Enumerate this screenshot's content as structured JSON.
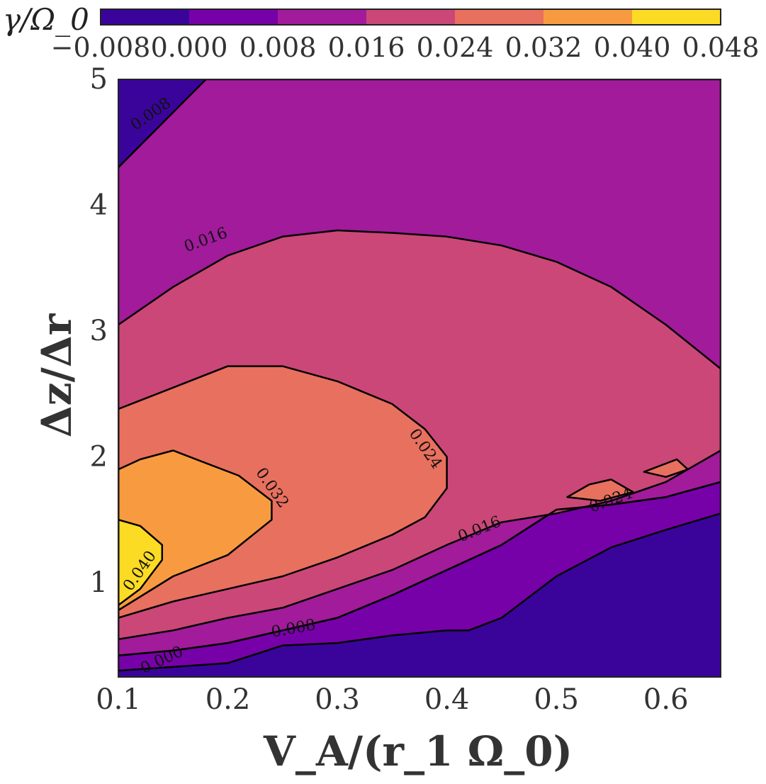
{
  "chart_data": {
    "type": "contourf",
    "title": "",
    "xlabel": "V_A/(r_1 Ω_0)",
    "ylabel": "Δz/Δr",
    "xlim": [
      0.1,
      0.65
    ],
    "ylim": [
      0.25,
      5.0
    ],
    "x_ticks": [
      0.1,
      0.2,
      0.3,
      0.4,
      0.5,
      0.6
    ],
    "x_tick_labels": [
      "0.1",
      "0.2",
      "0.3",
      "0.4",
      "0.5",
      "0.6"
    ],
    "y_ticks": [
      1,
      2,
      3,
      4,
      5
    ],
    "y_tick_labels": [
      "1",
      "2",
      "3",
      "4",
      "5"
    ],
    "colorbar": {
      "label": "γ/Ω_0",
      "levels": [
        -0.008,
        0.0,
        0.008,
        0.016,
        0.024,
        0.032,
        0.04,
        0.048
      ],
      "tick_labels": [
        "−0.008",
        "0.000",
        "0.008",
        "0.016",
        "0.024",
        "0.032",
        "0.040",
        "0.048"
      ],
      "colors": [
        "#3a049a",
        "#7701a8",
        "#a11b9b",
        "#cb4778",
        "#e8705e",
        "#f89b40",
        "#fcdb24"
      ],
      "position": "top"
    },
    "contours": [
      {
        "level": "0.000",
        "label": "0.000",
        "color": "#7701a8",
        "polygon": [
          [
            0.1,
            0.3
          ],
          [
            0.2,
            0.36
          ],
          [
            0.25,
            0.5
          ],
          [
            0.3,
            0.52
          ],
          [
            0.35,
            0.58
          ],
          [
            0.4,
            0.62
          ],
          [
            0.42,
            0.62
          ],
          [
            0.45,
            0.72
          ],
          [
            0.5,
            1.05
          ],
          [
            0.55,
            1.28
          ],
          [
            0.6,
            1.42
          ],
          [
            0.65,
            1.55
          ],
          [
            0.65,
            1.8
          ],
          [
            0.6,
            1.68
          ],
          [
            0.55,
            1.62
          ],
          [
            0.5,
            1.58
          ],
          [
            0.45,
            1.3
          ],
          [
            0.4,
            1.1
          ],
          [
            0.35,
            0.9
          ],
          [
            0.3,
            0.72
          ],
          [
            0.25,
            0.62
          ],
          [
            0.2,
            0.52
          ],
          [
            0.15,
            0.46
          ],
          [
            0.1,
            0.42
          ]
        ]
      },
      {
        "level": "0.008",
        "label": "0.008",
        "color": "#a11b9b",
        "polygon": [
          [
            0.1,
            0.42
          ],
          [
            0.15,
            0.46
          ],
          [
            0.2,
            0.52
          ],
          [
            0.25,
            0.62
          ],
          [
            0.3,
            0.72
          ],
          [
            0.35,
            0.9
          ],
          [
            0.4,
            1.1
          ],
          [
            0.45,
            1.3
          ],
          [
            0.5,
            1.58
          ],
          [
            0.55,
            1.62
          ],
          [
            0.6,
            1.68
          ],
          [
            0.65,
            1.8
          ],
          [
            0.65,
            5.0
          ],
          [
            0.18,
            5.0
          ],
          [
            0.1,
            4.3
          ]
        ]
      },
      {
        "level": "0.016",
        "label": "0.016",
        "color": "#cb4778",
        "polygon": [
          [
            0.1,
            0.55
          ],
          [
            0.15,
            0.62
          ],
          [
            0.2,
            0.72
          ],
          [
            0.25,
            0.8
          ],
          [
            0.3,
            0.95
          ],
          [
            0.35,
            1.1
          ],
          [
            0.4,
            1.3
          ],
          [
            0.45,
            1.48
          ],
          [
            0.5,
            1.55
          ],
          [
            0.55,
            1.65
          ],
          [
            0.6,
            1.8
          ],
          [
            0.65,
            2.05
          ],
          [
            0.65,
            2.7
          ],
          [
            0.6,
            3.05
          ],
          [
            0.55,
            3.35
          ],
          [
            0.5,
            3.55
          ],
          [
            0.45,
            3.68
          ],
          [
            0.4,
            3.75
          ],
          [
            0.35,
            3.78
          ],
          [
            0.3,
            3.8
          ],
          [
            0.25,
            3.75
          ],
          [
            0.2,
            3.6
          ],
          [
            0.15,
            3.35
          ],
          [
            0.1,
            3.05
          ]
        ]
      },
      {
        "level": "0.024",
        "label": "0.024",
        "color": "#e8705e",
        "polygon": [
          [
            0.1,
            0.72
          ],
          [
            0.15,
            0.85
          ],
          [
            0.2,
            0.95
          ],
          [
            0.25,
            1.05
          ],
          [
            0.3,
            1.2
          ],
          [
            0.35,
            1.38
          ],
          [
            0.38,
            1.52
          ],
          [
            0.4,
            1.75
          ],
          [
            0.4,
            2.0
          ],
          [
            0.38,
            2.22
          ],
          [
            0.35,
            2.42
          ],
          [
            0.3,
            2.6
          ],
          [
            0.25,
            2.72
          ],
          [
            0.2,
            2.72
          ],
          [
            0.15,
            2.55
          ],
          [
            0.1,
            2.38
          ]
        ]
      },
      {
        "level": "0.032",
        "label": "0.032",
        "color": "#f89b40",
        "polygon": [
          [
            0.1,
            0.78
          ],
          [
            0.15,
            1.05
          ],
          [
            0.2,
            1.22
          ],
          [
            0.24,
            1.5
          ],
          [
            0.24,
            1.65
          ],
          [
            0.21,
            1.85
          ],
          [
            0.18,
            1.95
          ],
          [
            0.15,
            2.05
          ],
          [
            0.12,
            1.98
          ],
          [
            0.1,
            1.9
          ]
        ]
      },
      {
        "level": "0.040",
        "label": "0.040",
        "color": "#fcdb24",
        "polygon": [
          [
            0.1,
            0.82
          ],
          [
            0.12,
            0.95
          ],
          [
            0.14,
            1.18
          ],
          [
            0.14,
            1.3
          ],
          [
            0.12,
            1.45
          ],
          [
            0.1,
            1.5
          ]
        ]
      },
      {
        "level": "0.024",
        "label": "0.024",
        "color": "#e8705e",
        "polygon": [
          [
            0.51,
            1.68
          ],
          [
            0.53,
            1.78
          ],
          [
            0.55,
            1.82
          ],
          [
            0.57,
            1.72
          ],
          [
            0.54,
            1.65
          ]
        ]
      },
      {
        "level": "0.024",
        "label": "",
        "color": "#e8705e",
        "polygon": [
          [
            0.58,
            1.88
          ],
          [
            0.61,
            1.98
          ],
          [
            0.62,
            1.9
          ],
          [
            0.6,
            1.84
          ]
        ]
      }
    ],
    "contour_labels": [
      "0.008",
      "0.016",
      "0.024",
      "0.032",
      "0.040",
      "0.008",
      "0.000",
      "0.016",
      "0.024"
    ]
  }
}
